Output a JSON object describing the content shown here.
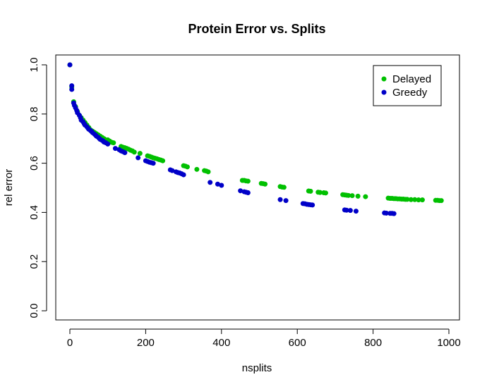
{
  "chart_data": {
    "type": "scatter",
    "title": "Protein Error vs. Splits",
    "xlabel": "nsplits",
    "ylabel": "rel error",
    "xlim": [
      0,
      1000
    ],
    "ylim": [
      0,
      1.0
    ],
    "xticks": [
      0,
      200,
      400,
      600,
      800,
      1000
    ],
    "yticks": [
      0.0,
      0.2,
      0.4,
      0.6,
      0.8,
      1.0
    ],
    "xtick_labels": [
      "0",
      "200",
      "400",
      "600",
      "800",
      "1000"
    ],
    "ytick_labels": [
      "0.0",
      "0.2",
      "0.4",
      "0.6",
      "0.8",
      "1.0"
    ],
    "grid": false,
    "legend": "top-right",
    "series": [
      {
        "name": "Delayed",
        "color": "#00c000",
        "points": [
          [
            0,
            1.0
          ],
          [
            5,
            0.91
          ],
          [
            10,
            0.85
          ],
          [
            15,
            0.83
          ],
          [
            20,
            0.81
          ],
          [
            25,
            0.795
          ],
          [
            30,
            0.785
          ],
          [
            35,
            0.775
          ],
          [
            40,
            0.765
          ],
          [
            45,
            0.755
          ],
          [
            50,
            0.745
          ],
          [
            55,
            0.735
          ],
          [
            60,
            0.73
          ],
          [
            65,
            0.725
          ],
          [
            70,
            0.72
          ],
          [
            75,
            0.715
          ],
          [
            80,
            0.71
          ],
          [
            85,
            0.705
          ],
          [
            90,
            0.7
          ],
          [
            95,
            0.695
          ],
          [
            100,
            0.695
          ],
          [
            105,
            0.69
          ],
          [
            110,
            0.685
          ],
          [
            115,
            0.683
          ],
          [
            135,
            0.668
          ],
          [
            140,
            0.665
          ],
          [
            145,
            0.663
          ],
          [
            150,
            0.66
          ],
          [
            155,
            0.657
          ],
          [
            160,
            0.653
          ],
          [
            165,
            0.65
          ],
          [
            170,
            0.645
          ],
          [
            185,
            0.64
          ],
          [
            205,
            0.63
          ],
          [
            210,
            0.628
          ],
          [
            215,
            0.625
          ],
          [
            220,
            0.622
          ],
          [
            225,
            0.62
          ],
          [
            230,
            0.618
          ],
          [
            235,
            0.615
          ],
          [
            240,
            0.613
          ],
          [
            245,
            0.61
          ],
          [
            300,
            0.59
          ],
          [
            305,
            0.588
          ],
          [
            310,
            0.585
          ],
          [
            335,
            0.575
          ],
          [
            355,
            0.57
          ],
          [
            360,
            0.568
          ],
          [
            365,
            0.565
          ],
          [
            455,
            0.53
          ],
          [
            460,
            0.53
          ],
          [
            465,
            0.528
          ],
          [
            470,
            0.527
          ],
          [
            505,
            0.518
          ],
          [
            510,
            0.517
          ],
          [
            515,
            0.515
          ],
          [
            555,
            0.505
          ],
          [
            560,
            0.503
          ],
          [
            565,
            0.502
          ],
          [
            630,
            0.487
          ],
          [
            635,
            0.486
          ],
          [
            655,
            0.482
          ],
          [
            660,
            0.481
          ],
          [
            670,
            0.48
          ],
          [
            675,
            0.479
          ],
          [
            720,
            0.472
          ],
          [
            725,
            0.471
          ],
          [
            730,
            0.47
          ],
          [
            735,
            0.469
          ],
          [
            745,
            0.468
          ],
          [
            760,
            0.466
          ],
          [
            780,
            0.464
          ],
          [
            840,
            0.458
          ],
          [
            845,
            0.457
          ],
          [
            850,
            0.457
          ],
          [
            855,
            0.456
          ],
          [
            860,
            0.456
          ],
          [
            865,
            0.455
          ],
          [
            870,
            0.455
          ],
          [
            875,
            0.454
          ],
          [
            880,
            0.454
          ],
          [
            885,
            0.453
          ],
          [
            890,
            0.453
          ],
          [
            900,
            0.452
          ],
          [
            910,
            0.452
          ],
          [
            920,
            0.451
          ],
          [
            930,
            0.451
          ],
          [
            965,
            0.449
          ],
          [
            970,
            0.449
          ],
          [
            975,
            0.448
          ],
          [
            980,
            0.448
          ]
        ]
      },
      {
        "name": "Greedy",
        "color": "#0000c8",
        "points": [
          [
            0,
            1.0
          ],
          [
            5,
            0.915
          ],
          [
            5,
            0.9
          ],
          [
            10,
            0.845
          ],
          [
            12,
            0.835
          ],
          [
            15,
            0.825
          ],
          [
            18,
            0.815
          ],
          [
            20,
            0.805
          ],
          [
            25,
            0.795
          ],
          [
            28,
            0.785
          ],
          [
            30,
            0.775
          ],
          [
            35,
            0.768
          ],
          [
            38,
            0.76
          ],
          [
            40,
            0.755
          ],
          [
            45,
            0.748
          ],
          [
            48,
            0.742
          ],
          [
            50,
            0.738
          ],
          [
            55,
            0.732
          ],
          [
            58,
            0.728
          ],
          [
            60,
            0.724
          ],
          [
            65,
            0.718
          ],
          [
            68,
            0.714
          ],
          [
            70,
            0.71
          ],
          [
            75,
            0.705
          ],
          [
            78,
            0.7
          ],
          [
            80,
            0.697
          ],
          [
            85,
            0.693
          ],
          [
            88,
            0.69
          ],
          [
            90,
            0.686
          ],
          [
            95,
            0.683
          ],
          [
            100,
            0.678
          ],
          [
            120,
            0.66
          ],
          [
            130,
            0.655
          ],
          [
            135,
            0.65
          ],
          [
            140,
            0.647
          ],
          [
            145,
            0.643
          ],
          [
            180,
            0.622
          ],
          [
            200,
            0.61
          ],
          [
            205,
            0.607
          ],
          [
            210,
            0.604
          ],
          [
            215,
            0.602
          ],
          [
            220,
            0.6
          ],
          [
            265,
            0.573
          ],
          [
            270,
            0.57
          ],
          [
            280,
            0.565
          ],
          [
            285,
            0.562
          ],
          [
            290,
            0.56
          ],
          [
            295,
            0.557
          ],
          [
            300,
            0.553
          ],
          [
            370,
            0.522
          ],
          [
            390,
            0.515
          ],
          [
            400,
            0.51
          ],
          [
            450,
            0.488
          ],
          [
            460,
            0.484
          ],
          [
            465,
            0.482
          ],
          [
            470,
            0.48
          ],
          [
            555,
            0.452
          ],
          [
            570,
            0.448
          ],
          [
            615,
            0.436
          ],
          [
            620,
            0.435
          ],
          [
            625,
            0.433
          ],
          [
            630,
            0.432
          ],
          [
            635,
            0.431
          ],
          [
            640,
            0.43
          ],
          [
            725,
            0.41
          ],
          [
            730,
            0.409
          ],
          [
            740,
            0.408
          ],
          [
            755,
            0.405
          ],
          [
            830,
            0.398
          ],
          [
            835,
            0.397
          ],
          [
            845,
            0.396
          ],
          [
            850,
            0.396
          ],
          [
            855,
            0.395
          ]
        ]
      }
    ]
  }
}
